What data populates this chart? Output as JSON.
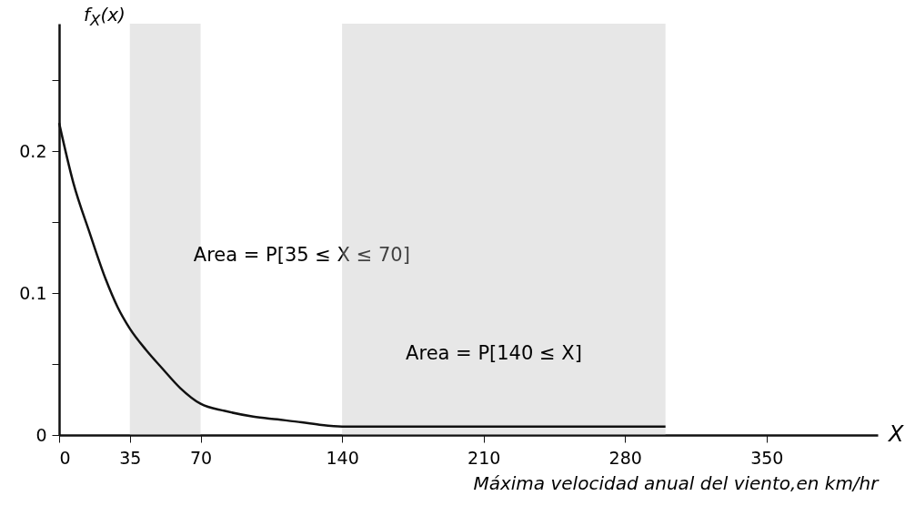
{
  "chart_data": {
    "type": "line",
    "xlabel": "Máxima velocidad anual del viento,en km/hr",
    "ylabel": "f$_{X}$(x)",
    "x": [
      0,
      7,
      15,
      23,
      29,
      35,
      43,
      51,
      60,
      70,
      82,
      96,
      108,
      120,
      130,
      140,
      160,
      200,
      250,
      300
    ],
    "series": [
      {
        "color": "#111111",
        "values": [
          0.22,
          0.178,
          0.143,
          0.11,
          0.09,
          0.075,
          0.06,
          0.047,
          0.033,
          0.022,
          0.017,
          0.013,
          0.011,
          0.009,
          0.007,
          0.006,
          0.006,
          0.006,
          0.006,
          0.006
        ]
      }
    ],
    "xlim": [
      0,
      405
    ],
    "ylim": [
      0,
      0.29
    ],
    "xticks": [
      0,
      35,
      70,
      140,
      210,
      280,
      350
    ],
    "yticks": [
      0,
      {
        "value": 0.05,
        "label": null
      },
      0.1,
      {
        "value": 0.15,
        "label": null
      },
      0.2,
      {
        "value": 0.25,
        "label": null
      }
    ],
    "bands": [
      {
        "axis": "x",
        "from": 35,
        "to": 70,
        "label": "Area = P[35 ≤ X ≤ 70]",
        "color": "#bbbbbb"
      },
      {
        "axis": "x",
        "from": 140,
        "to": 300,
        "label": "Area = P[140 ≤ X]",
        "color": "#bbbbbb"
      }
    ],
    "annotations": [
      "X"
    ],
    "grid": false,
    "marker": "none",
    "line_style": "solid"
  }
}
